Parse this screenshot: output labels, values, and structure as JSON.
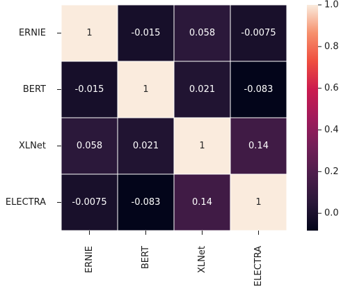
{
  "chart_data": {
    "type": "heatmap",
    "row_labels": [
      "ERNIE",
      "BERT",
      "XLNet",
      "ELECTRA"
    ],
    "col_labels": [
      "ERNIE",
      "BERT",
      "XLNet",
      "ELECTRA"
    ],
    "values": [
      [
        1,
        -0.015,
        0.058,
        -0.0075
      ],
      [
        -0.015,
        1,
        0.021,
        -0.083
      ],
      [
        0.058,
        0.021,
        1,
        0.14
      ],
      [
        -0.0075,
        -0.083,
        0.14,
        1
      ]
    ],
    "cell_labels": [
      [
        "1",
        "-0.015",
        "0.058",
        "-0.0075"
      ],
      [
        "-0.015",
        "1",
        "0.021",
        "-0.083"
      ],
      [
        "0.058",
        "0.021",
        "1",
        "0.14"
      ],
      [
        "-0.0075",
        "-0.083",
        "0.14",
        "1"
      ]
    ],
    "colorbar": {
      "min": -0.083,
      "max": 1,
      "ticks": [
        0.0,
        0.2,
        0.4,
        0.6,
        0.8,
        1.0
      ],
      "tick_labels": [
        "0.0",
        "0.2",
        "0.4",
        "0.6",
        "0.8",
        "1.0"
      ],
      "colormap": "rocket",
      "position": "right"
    },
    "title": "",
    "xlabel": "",
    "ylabel": "",
    "annotated": true,
    "grid": false
  }
}
